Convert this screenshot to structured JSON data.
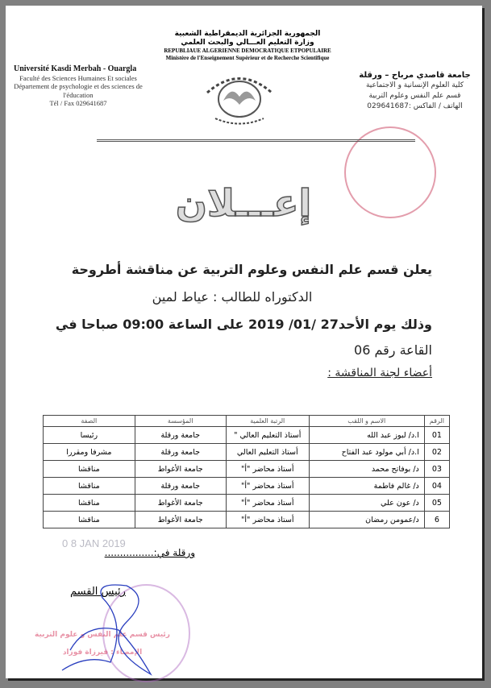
{
  "header": {
    "arabic_lines": [
      "الجمهورية الجزائرية الديمقراطية الشعبية",
      "وزارة التعليم العـــالي والبحث العلمي"
    ],
    "french_lines": [
      "REPUBLIAUE ALGERIENNE DEMOCRATIQUE ETPOPULAIRE",
      "Ministère de l'Enseignement Supérieur et de Recherche Scientifique"
    ]
  },
  "left_block": [
    "Université Kasdi Merbah - Ouargla",
    "Faculté des Sciences Humaines Et sociales",
    "Département de psychologie et des sciences de l'éducation",
    "Tél / Fax 029641687"
  ],
  "right_block": [
    "جامعة قاصدي مرباح – ورقلة",
    "كلية العلوم الإنسانية و الاجتماعية",
    "قسم علم النفس وعلوم التربية",
    "الهاتف / الفاكس :029641687"
  ],
  "logo_text": "جامعة قاصدي مرباح ورقلة Université Kasdi Merbah Ouargla",
  "title": "إعـــلان",
  "body": {
    "line1": "يعلن قسم علم النفس وعلوم التربية عن مناقشة أطروحة",
    "line2": "الدكتوراه للطالب : عياط لمين",
    "line3": "وذلك يوم الأحد27 /01/ 2019 على الساعة 09:00 صباحا في",
    "line4": "القاعة رقم 06",
    "committee_heading": "أعضاء لجنة المناقشة :"
  },
  "table": {
    "headers": [
      "الرقم",
      "الاسم و اللقب",
      "الرتبة العلمية",
      "المؤسسة",
      "الصفة"
    ],
    "rows": [
      [
        "01",
        "ا.د/ لبوز عبد الله",
        "أستاذ التعليم العالي \"",
        "جامعة ورقلة",
        "رئيسا"
      ],
      [
        "02",
        "ا.د/ أبي مولود عبد الفتاح",
        "أستاذ التعليم العالي",
        "جامعة ورقلة",
        "مشرفا ومقررا"
      ],
      [
        "03",
        "د/ بوفاتح محمد",
        "أستاذ محاضر \"أ\"",
        "جامعة الأغواط",
        "مناقشا"
      ],
      [
        "04",
        "د/ غالم فاطمة",
        "أستاذ محاضر \"أ\"",
        "جامعة ورقلة",
        "مناقشا"
      ],
      [
        "05",
        "د/ عون علي",
        "أستاذ محاضر \"أ\"",
        "جامعة الأغواط",
        "مناقشا"
      ],
      [
        "6",
        "د/عمومن رمضان",
        "أستاذ محاضر \"أ\"",
        "جامعة الأغواط",
        "مناقشا"
      ]
    ]
  },
  "footer": {
    "place_date": "ورقلة في:................",
    "date_stamp": "0 8 JAN 2019",
    "signatory": "رئيس القسم",
    "stamp_text": [
      "رئيس قسم علم النفس و علوم التربية",
      "الإمضاء : قيرزاة فوزاد"
    ]
  },
  "colors": {
    "stamp": "#d94a6a",
    "signature": "#2a3fbf"
  }
}
